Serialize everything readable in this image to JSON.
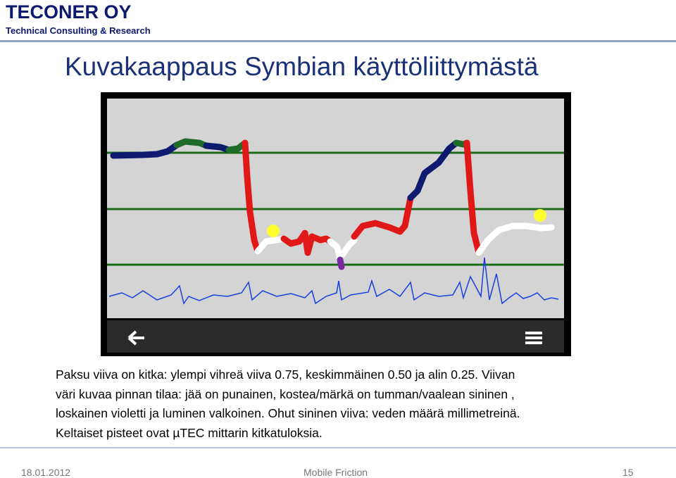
{
  "header": {
    "company": "TECONER OY",
    "subtitle": "Technical Consulting & Research"
  },
  "title": "Kuvakaappaus Symbian käyttöliittymästä",
  "body": {
    "lines": [
      "Paksu viiva on kitka: ylempi vihreä viiva 0.75, keskimmäinen 0.50 ja alin 0.25. Viivan",
      "väri kuvaa pinnan tilaa: jää on punainen, kostea/märkä on tumman/vaalean sininen ,",
      "loskainen violetti ja luminen valkoinen. Ohut sininen viiva: veden määrä millimetreinä.",
      "Keltaiset pisteet ovat µTEC mittarin kitkatuloksia."
    ]
  },
  "footer": {
    "date": "18.01.2012",
    "center": "Mobile Friction",
    "page": "15"
  }
}
